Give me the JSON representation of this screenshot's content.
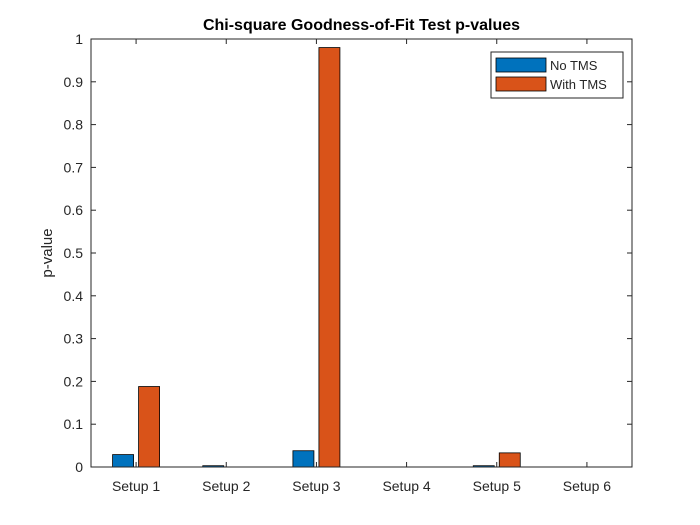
{
  "chart_data": {
    "type": "bar",
    "title": "Chi-square Goodness-of-Fit Test p-values",
    "xlabel": "",
    "ylabel": "p-value",
    "categories": [
      "Setup 1",
      "Setup 2",
      "Setup 3",
      "Setup 4",
      "Setup 5",
      "Setup 6"
    ],
    "series": [
      {
        "name": "No TMS",
        "color": "#0072BD",
        "values": [
          0.029,
          0.003,
          0.038,
          0.0,
          0.003,
          0.0
        ]
      },
      {
        "name": "With TMS",
        "color": "#D95319",
        "values": [
          0.188,
          0.0,
          0.98,
          0.0,
          0.033,
          0.0
        ]
      }
    ],
    "ylim": [
      0,
      1
    ],
    "yticks": [
      0,
      0.1,
      0.2,
      0.3,
      0.4,
      0.5,
      0.6,
      0.7,
      0.8,
      0.9,
      1
    ],
    "ytick_labels": [
      "0",
      "0.1",
      "0.2",
      "0.3",
      "0.4",
      "0.5",
      "0.6",
      "0.7",
      "0.8",
      "0.9",
      "1"
    ],
    "grid": false,
    "legend_position": "top-right"
  }
}
